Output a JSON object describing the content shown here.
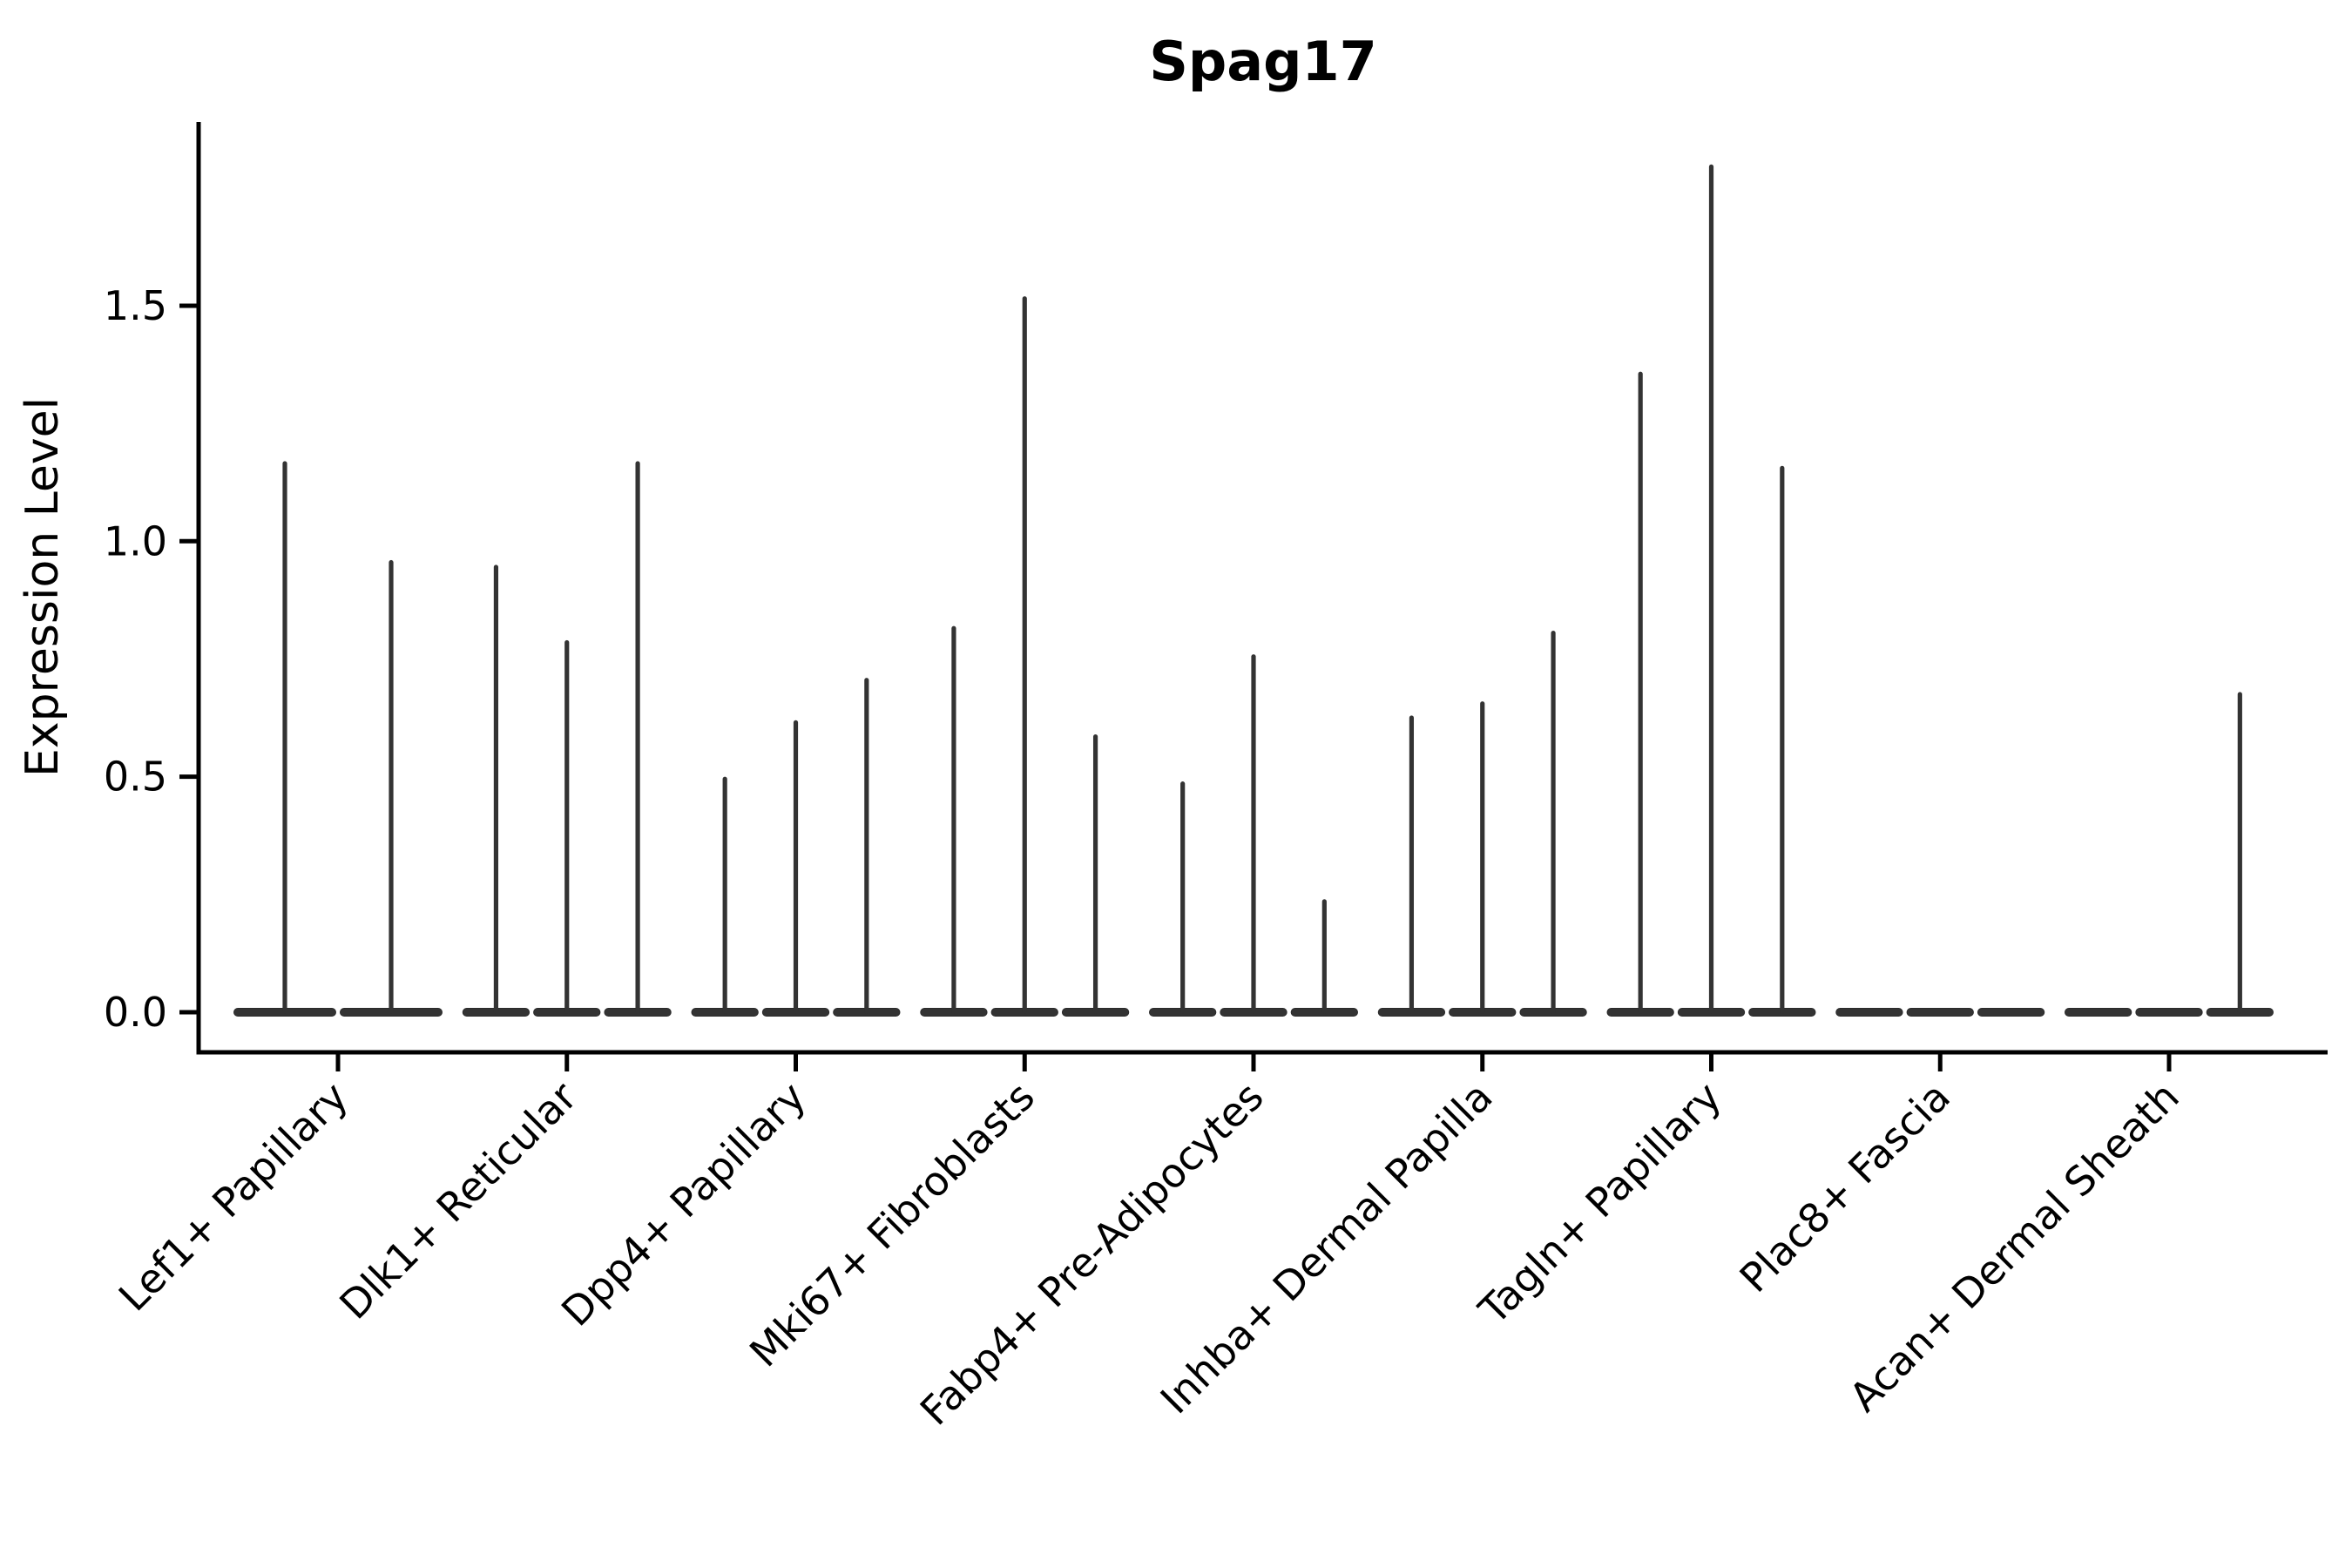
{
  "chart_data": {
    "type": "violin",
    "title": "Spag17",
    "ylabel": "Expression Level",
    "xlabel": "",
    "grid": false,
    "legend_position": "none",
    "ylim": [
      0,
      1.9
    ],
    "yticks": [
      0.0,
      0.5,
      1.0,
      1.5
    ],
    "ytick_labels": [
      "0.0",
      "0.5",
      "1.0",
      "1.5"
    ],
    "categories": [
      "Lef1+ Papillary",
      "Dlk1+ Reticular",
      "Dpp4+ Papillary",
      "Mki67+ Fibroblasts",
      "Fabp4+ Pre-Adipocytes",
      "Inhba+ Dermal Papilla",
      "Tagln+ Papillary",
      "Plac8+ Fascia",
      "Acan+ Dermal Sheath"
    ],
    "groups": [
      {
        "category": "Lef1+ Papillary",
        "violin_peaks": [
          1.17,
          0.96
        ]
      },
      {
        "category": "Dlk1+ Reticular",
        "violin_peaks": [
          0.95,
          0.79,
          1.17
        ]
      },
      {
        "category": "Dpp4+ Papillary",
        "violin_peaks": [
          0.5,
          0.62,
          0.71
        ]
      },
      {
        "category": "Mki67+ Fibroblasts",
        "violin_peaks": [
          0.82,
          1.52,
          0.59
        ]
      },
      {
        "category": "Fabp4+ Pre-Adipocytes",
        "violin_peaks": [
          0.49,
          0.76,
          0.24
        ]
      },
      {
        "category": "Inhba+ Dermal Papilla",
        "violin_peaks": [
          0.63,
          0.66,
          0.81
        ]
      },
      {
        "category": "Tagln+ Papillary",
        "violin_peaks": [
          1.36,
          1.8,
          1.16
        ]
      },
      {
        "category": "Plac8+ Fascia",
        "violin_peaks": [
          0,
          0,
          0
        ]
      },
      {
        "category": "Acan+ Dermal Sheath",
        "violin_peaks": [
          0,
          0,
          0.68
        ]
      }
    ],
    "colors": {
      "violin_fill": "#333333",
      "violin_edge": "#2b2b2b",
      "axis": "#000000",
      "text": "#000000",
      "background": "#ffffff"
    }
  }
}
